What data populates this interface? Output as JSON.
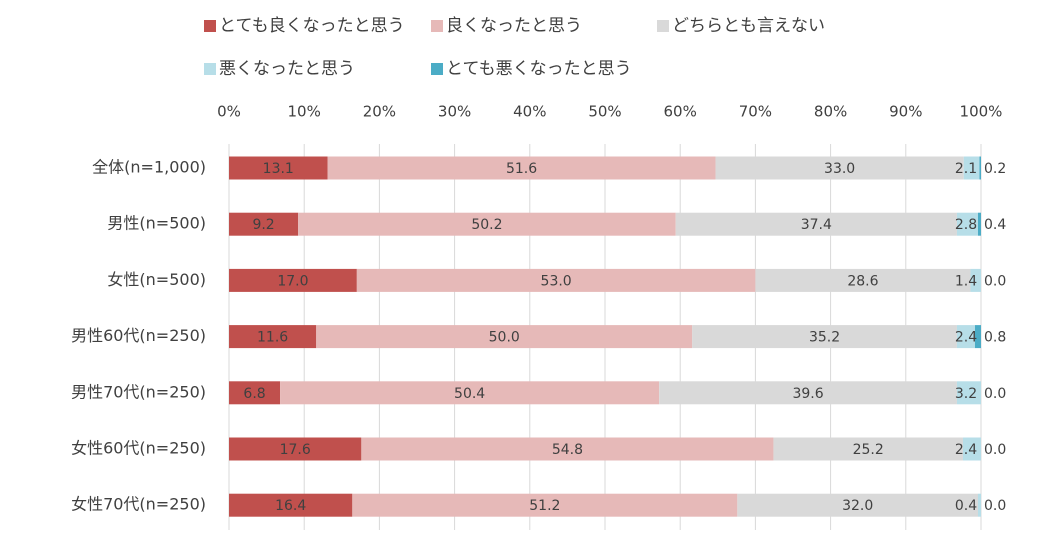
{
  "chart_data": {
    "type": "bar",
    "orientation": "horizontal",
    "stacked": "percent",
    "legend_position": "top",
    "grid": true,
    "xlim": [
      0,
      100
    ],
    "x_ticks": [
      "0%",
      "10%",
      "20%",
      "30%",
      "40%",
      "50%",
      "60%",
      "70%",
      "80%",
      "90%",
      "100%"
    ],
    "categories": [
      "全体(n=1,000)",
      "男性(n=500)",
      "女性(n=500)",
      "男性60代(n=250)",
      "男性70代(n=250)",
      "女性60代(n=250)",
      "女性70代(n=250)"
    ],
    "series": [
      {
        "name": "とても良くなったと思う",
        "color": "#c0504d",
        "values": [
          13.1,
          9.2,
          17.0,
          11.6,
          6.8,
          17.6,
          16.4
        ]
      },
      {
        "name": "良くなったと思う",
        "color": "#e6b9b8",
        "values": [
          51.6,
          50.2,
          53.0,
          50.0,
          50.4,
          54.8,
          51.2
        ]
      },
      {
        "name": "どちらとも言えない",
        "color": "#d9d9d9",
        "values": [
          33.0,
          37.4,
          28.6,
          35.2,
          39.6,
          25.2,
          32.0
        ]
      },
      {
        "name": "悪くなったと思う",
        "color": "#b7dee8",
        "values": [
          2.1,
          2.8,
          1.4,
          2.4,
          3.2,
          2.4,
          0.4
        ]
      },
      {
        "name": "とても悪くなったと思う",
        "color": "#4bacc6",
        "values": [
          0.2,
          0.4,
          0.0,
          0.8,
          0.0,
          0.0,
          0.0
        ]
      }
    ],
    "value_labels": [
      [
        "13.1",
        "51.6",
        "33.0",
        "2.1",
        "0.2"
      ],
      [
        "9.2",
        "50.2",
        "37.4",
        "2.8",
        "0.4"
      ],
      [
        "17.0",
        "53.0",
        "28.6",
        "1.4",
        "0.0"
      ],
      [
        "11.6",
        "50.0",
        "35.2",
        "2.4",
        "0.8"
      ],
      [
        "6.8",
        "50.4",
        "39.6",
        "3.2",
        "0.0"
      ],
      [
        "17.6",
        "54.8",
        "25.2",
        "2.4",
        "0.0"
      ],
      [
        "16.4",
        "51.2",
        "32.0",
        "0.4",
        "0.0"
      ]
    ]
  }
}
